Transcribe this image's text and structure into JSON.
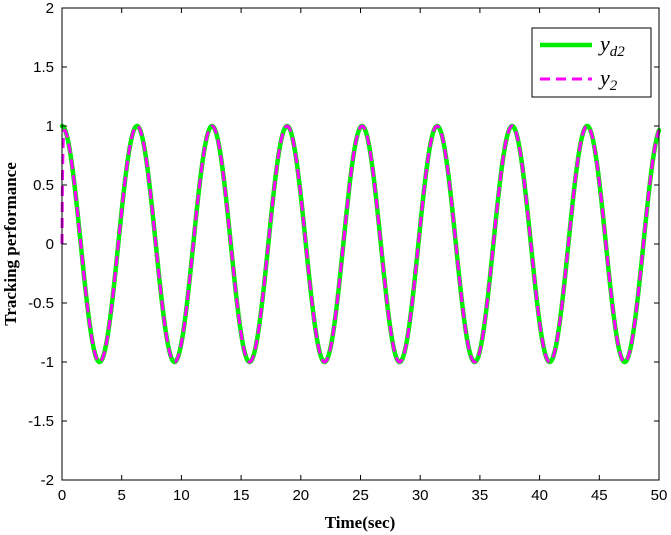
{
  "chart_data": {
    "type": "line",
    "title": "",
    "xlabel": "Time(sec)",
    "ylabel": "Tracking performance",
    "xlim": [
      0,
      50
    ],
    "ylim": [
      -2,
      2
    ],
    "xticks": [
      "0",
      "5",
      "10",
      "15",
      "20",
      "25",
      "30",
      "35",
      "40",
      "45",
      "50"
    ],
    "yticks": [
      "-2",
      "-1.5",
      "-1",
      "-0.5",
      "0",
      "0.5",
      "1",
      "1.5",
      "2"
    ],
    "grid": false,
    "legend": {
      "position": "top-right",
      "entries": [
        {
          "base": "y",
          "sub": "d2"
        },
        {
          "base": "y",
          "sub": "2"
        }
      ]
    },
    "series": [
      {
        "function": "cos(t)",
        "t_range": [
          0,
          50
        ],
        "color": "#00ee00",
        "style": "solid",
        "x": [
          0,
          3.1416,
          6.2832,
          9.4248,
          12.5664,
          15.708,
          18.8496,
          21.9911,
          25.1327,
          28.2743,
          31.4159,
          34.5575,
          37.6991,
          40.8407,
          43.9823,
          47.1239,
          50
        ],
        "values": [
          1,
          -1,
          1,
          -1,
          1,
          -1,
          1,
          -1,
          1,
          -1,
          1,
          -1,
          1,
          -1,
          1,
          -1,
          0.965
        ]
      },
      {
        "function": "cos(t) with start-up transient from 0",
        "t_range": [
          0,
          50
        ],
        "color": "#ff00ff",
        "style": "dashed",
        "x": [
          0,
          0.2,
          3.1416,
          6.2832,
          9.4248,
          12.5664,
          15.708,
          18.8496,
          21.9911,
          25.1327,
          28.2743,
          31.4159,
          34.5575,
          37.6991,
          40.8407,
          43.9823,
          47.1239,
          50
        ],
        "values": [
          0,
          1,
          -1,
          1,
          -1,
          1,
          -1,
          1,
          -1,
          1,
          -1,
          1,
          -1,
          1,
          -1,
          1,
          -1,
          0.965
        ]
      }
    ]
  }
}
